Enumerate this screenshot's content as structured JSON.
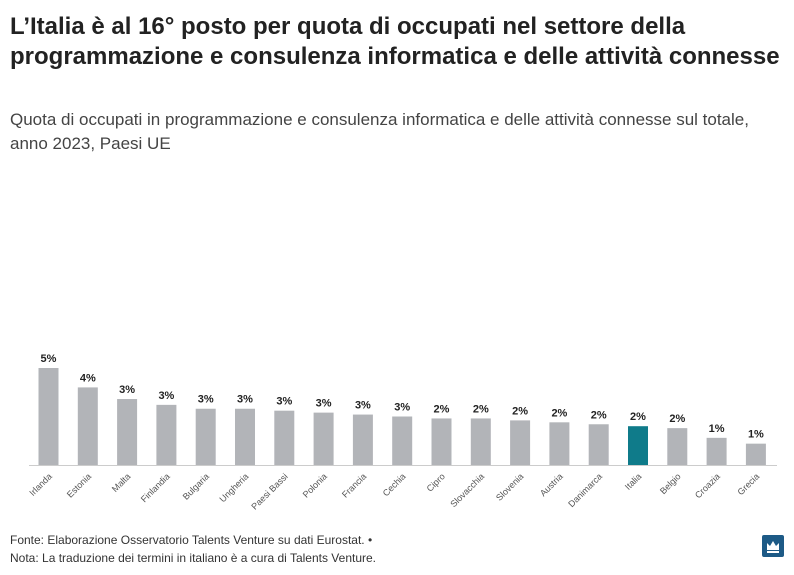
{
  "title": "L’Italia è al 16° posto per quota di occupati nel settore della programmazione e consulenza informatica e delle attività connesse",
  "subtitle": "Quota di occupati in programmazione e consulenza informatica e delle attività connesse sul totale, anno 2023, Paesi UE",
  "footer": {
    "source": "Fonte: Elaborazione Osservatorio Talents Venture su dati Eurostat. •",
    "note": "Nota: La traduzione dei termini in italiano è a cura di Talents Venture."
  },
  "colors": {
    "bar": "#b2b4b8",
    "highlight": "#0f7b8a",
    "logo": "#1d5a86"
  },
  "logo_icon": "crown-icon",
  "chart_data": {
    "type": "bar",
    "categories": [
      "Irlanda",
      "Estonia",
      "Malta",
      "Finlandia",
      "Bulgaria",
      "Ungheria",
      "Paesi Bassi",
      "Polonia",
      "Francia",
      "Cechia",
      "Cipro",
      "Slovacchia",
      "Slovenia",
      "Austria",
      "Danimarca",
      "Italia",
      "Belgio",
      "Croazia",
      "Grecia"
    ],
    "values": [
      5.0,
      4.0,
      3.4,
      3.1,
      2.9,
      2.9,
      2.8,
      2.7,
      2.6,
      2.5,
      2.4,
      2.4,
      2.3,
      2.2,
      2.1,
      2.0,
      1.9,
      1.4,
      1.1
    ],
    "labels": [
      "5%",
      "4%",
      "3%",
      "3%",
      "3%",
      "3%",
      "3%",
      "3%",
      "3%",
      "3%",
      "2%",
      "2%",
      "2%",
      "2%",
      "2%",
      "2%",
      "2%",
      "1%",
      "1%"
    ],
    "highlight": "Italia",
    "ylim": [
      0,
      5
    ],
    "unit": "%",
    "grid": false,
    "xlabel": "",
    "ylabel": ""
  }
}
